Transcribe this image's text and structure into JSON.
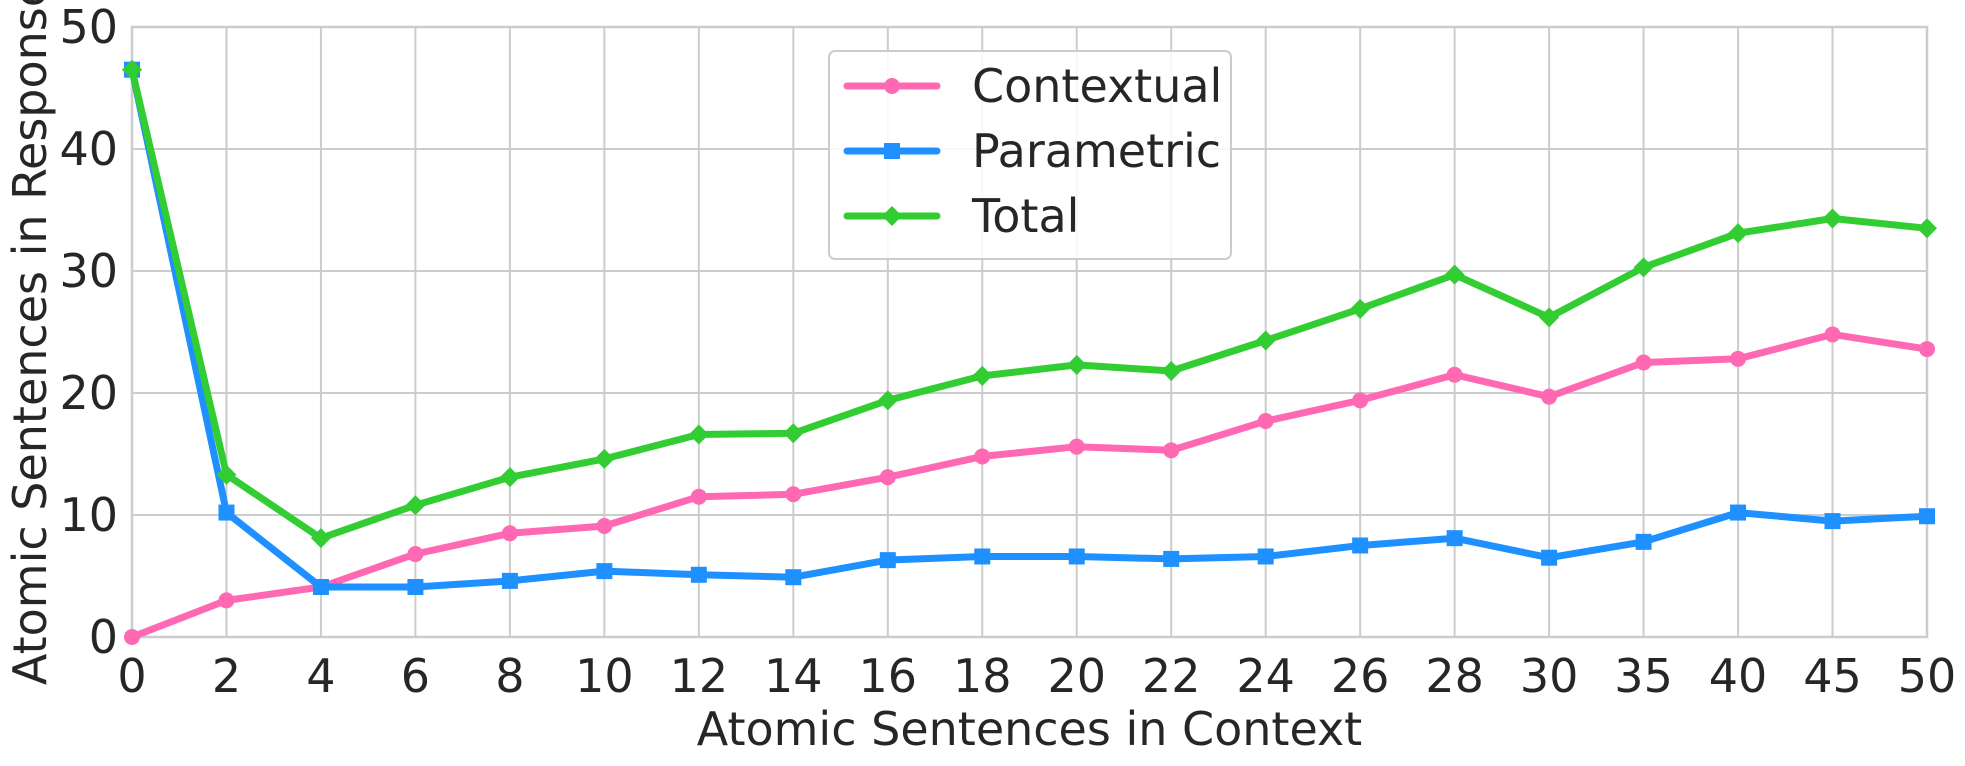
{
  "chart_data": {
    "type": "line",
    "xlabel": "Atomic Sentences in Context",
    "ylabel": "Atomic Sentences in Response",
    "categories": [
      "0",
      "2",
      "4",
      "6",
      "8",
      "10",
      "12",
      "14",
      "16",
      "18",
      "20",
      "22",
      "24",
      "26",
      "28",
      "30",
      "35",
      "40",
      "45",
      "50"
    ],
    "ylim": [
      0,
      50
    ],
    "yticks": [
      0,
      10,
      20,
      30,
      40,
      50
    ],
    "grid": true,
    "legend_position": "top-center",
    "series": [
      {
        "name": "Contextual",
        "color": "#ff69b4",
        "marker": "circle",
        "values": [
          0,
          3.0,
          4.1,
          6.8,
          8.5,
          9.1,
          11.5,
          11.7,
          13.1,
          14.8,
          15.6,
          15.3,
          17.7,
          19.4,
          21.5,
          19.7,
          22.5,
          22.8,
          24.8,
          23.6
        ]
      },
      {
        "name": "Parametric",
        "color": "#1e90ff",
        "marker": "square",
        "values": [
          46.5,
          10.2,
          4.1,
          4.1,
          4.6,
          5.4,
          5.1,
          4.9,
          6.3,
          6.6,
          6.6,
          6.4,
          6.6,
          7.5,
          8.1,
          6.5,
          7.8,
          10.2,
          9.5,
          9.9
        ]
      },
      {
        "name": "Total",
        "color": "#32cd32",
        "marker": "diamond",
        "values": [
          46.5,
          13.3,
          8.1,
          10.8,
          13.1,
          14.6,
          16.6,
          16.7,
          19.4,
          21.4,
          22.3,
          21.8,
          24.3,
          26.9,
          29.7,
          26.2,
          30.3,
          33.1,
          34.3,
          33.5
        ]
      }
    ]
  }
}
